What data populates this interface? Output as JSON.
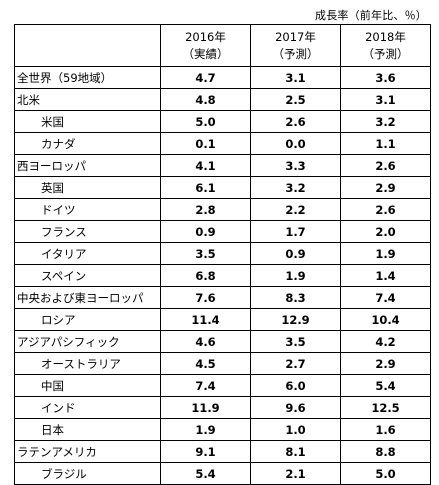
{
  "unit_note": "成長率（前年比、％）",
  "columns": [
    {
      "year": "2016年",
      "kind": "（実績）"
    },
    {
      "year": "2017年",
      "kind": "（予測）"
    },
    {
      "year": "2018年",
      "kind": "（予測）"
    }
  ],
  "rows": [
    {
      "region": "全世界（59地域）",
      "level": 0,
      "v2016": "4.7",
      "v2017": "3.1",
      "v2018": "3.6"
    },
    {
      "region": "北米",
      "level": 0,
      "v2016": "4.8",
      "v2017": "2.5",
      "v2018": "3.1"
    },
    {
      "region": "米国",
      "level": 1,
      "v2016": "5.0",
      "v2017": "2.6",
      "v2018": "3.2"
    },
    {
      "region": "カナダ",
      "level": 1,
      "v2016": "0.1",
      "v2017": "0.0",
      "v2018": "1.1"
    },
    {
      "region": "西ヨーロッパ",
      "level": 0,
      "v2016": "4.1",
      "v2017": "3.3",
      "v2018": "2.6"
    },
    {
      "region": "英国",
      "level": 1,
      "v2016": "6.1",
      "v2017": "3.2",
      "v2018": "2.9"
    },
    {
      "region": "ドイツ",
      "level": 1,
      "v2016": "2.8",
      "v2017": "2.2",
      "v2018": "2.6"
    },
    {
      "region": "フランス",
      "level": 1,
      "v2016": "0.9",
      "v2017": "1.7",
      "v2018": "2.0"
    },
    {
      "region": "イタリア",
      "level": 1,
      "v2016": "3.5",
      "v2017": "0.9",
      "v2018": "1.9"
    },
    {
      "region": "スペイン",
      "level": 1,
      "v2016": "6.8",
      "v2017": "1.9",
      "v2018": "1.4"
    },
    {
      "region": "中央および東ヨーロッパ",
      "level": 0,
      "v2016": "7.6",
      "v2017": "8.3",
      "v2018": "7.4"
    },
    {
      "region": "ロシア",
      "level": 1,
      "v2016": "11.4",
      "v2017": "12.9",
      "v2018": "10.4"
    },
    {
      "region": "アジアパシフィック",
      "level": 0,
      "v2016": "4.6",
      "v2017": "3.5",
      "v2018": "4.2"
    },
    {
      "region": "オーストラリア",
      "level": 1,
      "v2016": "4.5",
      "v2017": "2.7",
      "v2018": "2.9"
    },
    {
      "region": "中国",
      "level": 1,
      "v2016": "7.4",
      "v2017": "6.0",
      "v2018": "5.4"
    },
    {
      "region": "インド",
      "level": 1,
      "v2016": "11.9",
      "v2017": "9.6",
      "v2018": "12.5"
    },
    {
      "region": "日本",
      "level": 1,
      "v2016": "1.9",
      "v2017": "1.0",
      "v2018": "1.6"
    },
    {
      "region": "ラテンアメリカ",
      "level": 0,
      "v2016": "9.1",
      "v2017": "8.1",
      "v2018": "8.8"
    },
    {
      "region": "ブラジル",
      "level": 1,
      "v2016": "5.4",
      "v2017": "2.1",
      "v2018": "5.0"
    }
  ]
}
